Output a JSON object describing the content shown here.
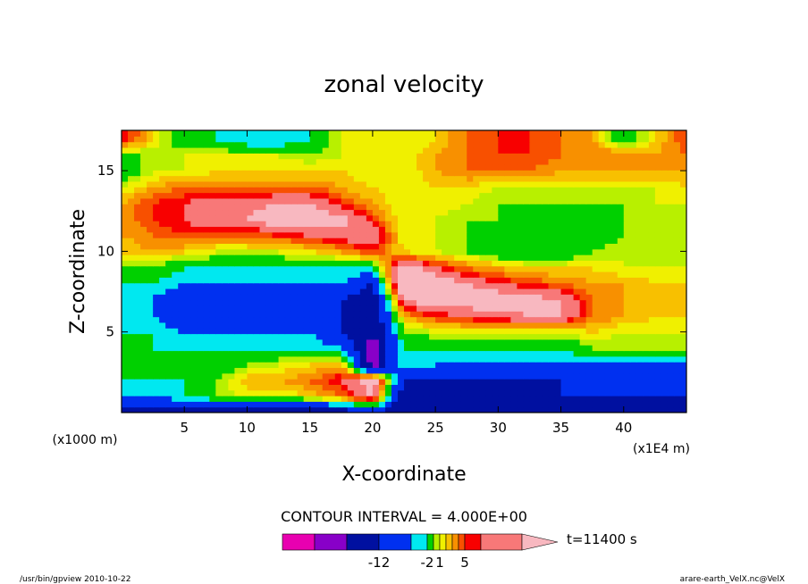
{
  "footer": {
    "program": "/usr/bin/gpview  2010-10-22",
    "source": "arare-earth_VelX.nc@VelX"
  },
  "chart_data": {
    "type": "heatmap",
    "title": "zonal velocity",
    "xlabel": "X-coordinate",
    "ylabel": "Z-coordinate",
    "x_unit": "(x1E4 m)",
    "y_unit": "(x1000 m)",
    "xlim": [
      0,
      45
    ],
    "ylim": [
      0,
      17.5
    ],
    "x_ticks": [
      5,
      10,
      15,
      20,
      25,
      30,
      35,
      40
    ],
    "y_ticks": [
      5,
      10,
      15
    ],
    "grid": false,
    "contour_interval_text": "CONTOUR INTERVAL = 4.000E+00",
    "time_label": "t=11400 s",
    "colorbar": {
      "tick_labels": [
        "-12",
        "-2",
        "1",
        "5"
      ],
      "colors": [
        "#e800b0",
        "#8800c8",
        "#0010a0",
        "#0030f0",
        "#00e8f0",
        "#00d000",
        "#b8f000",
        "#f0f000",
        "#f8c000",
        "#f89000",
        "#f85000",
        "#f80000",
        "#f87878",
        "#f8b8c0"
      ]
    },
    "field": {
      "value_grid_x": [
        0,
        2.5,
        5,
        7.5,
        10,
        12.5,
        15,
        17.5,
        20,
        22.5,
        25,
        27.5,
        30,
        32.5,
        35,
        37.5,
        40,
        42.5,
        45
      ],
      "value_grid_z": [
        0,
        1,
        2,
        3,
        4,
        5,
        6,
        7,
        8,
        9,
        10,
        11,
        12,
        13,
        14,
        15,
        16,
        17
      ],
      "description_rows_from_bottom": "see rows",
      "rows": [
        [
          -12,
          -12,
          -12,
          -12,
          -12,
          -12,
          -12,
          -12,
          -8,
          -12,
          -12,
          -12,
          -12,
          -12,
          -12,
          -12,
          -12,
          -12,
          -12
        ],
        [
          -4,
          -4,
          -2,
          0,
          1,
          1,
          2,
          4,
          8,
          -12,
          -12,
          -12,
          -12,
          -12,
          -8,
          -8,
          -8,
          -8,
          -8
        ],
        [
          -2,
          -2,
          -2,
          0,
          3,
          3,
          4,
          6,
          10,
          -8,
          -8,
          -8,
          -8,
          -8,
          -8,
          -8,
          -8,
          -8,
          -8
        ],
        [
          -2,
          -2,
          -2,
          -2,
          0,
          1,
          2,
          3,
          -14,
          -2,
          -4,
          -4,
          -4,
          -4,
          -4,
          -4,
          -4,
          -4,
          -4
        ],
        [
          -2,
          -2,
          -2,
          -2,
          -2,
          -2,
          -2,
          -4,
          -14,
          -2,
          -2,
          -2,
          -2,
          -2,
          -2,
          0,
          0,
          0,
          0
        ],
        [
          -2,
          -2,
          -4,
          -4,
          -4,
          -4,
          -4,
          -8,
          -12,
          0,
          1,
          1,
          1,
          1,
          1,
          2,
          1,
          1,
          1
        ],
        [
          -2,
          -4,
          -8,
          -8,
          -8,
          -8,
          -8,
          -8,
          -12,
          3,
          5,
          6,
          7,
          8,
          8,
          4,
          3,
          2,
          2
        ],
        [
          -2,
          -4,
          -8,
          -8,
          -8,
          -8,
          -8,
          -8,
          -12,
          8,
          10,
          10,
          10,
          9,
          8,
          4,
          3,
          2,
          2
        ],
        [
          -2,
          -2,
          -4,
          -4,
          -4,
          -4,
          -4,
          -4,
          -8,
          12,
          10,
          8,
          6,
          5,
          4,
          3,
          3,
          2,
          2
        ],
        [
          0,
          0,
          -2,
          -2,
          -2,
          -2,
          -2,
          -2,
          -2,
          10,
          6,
          4,
          3,
          2,
          2,
          2,
          1,
          1,
          1
        ],
        [
          2,
          3,
          2,
          1,
          1,
          1,
          2,
          3,
          5,
          2,
          1,
          0,
          -2,
          -2,
          -2,
          0,
          1,
          0,
          0
        ],
        [
          3,
          4,
          5,
          4,
          4,
          5,
          6,
          7,
          8,
          1,
          1,
          0,
          -2,
          -2,
          -2,
          -2,
          0,
          0,
          1
        ],
        [
          3,
          5,
          6,
          8,
          8,
          10,
          10,
          9,
          5,
          1,
          1,
          0,
          0,
          -2,
          -2,
          -2,
          0,
          0,
          1
        ],
        [
          3,
          5,
          6,
          7,
          7,
          8,
          8,
          5,
          3,
          1,
          2,
          1,
          0,
          0,
          0,
          0,
          0,
          1,
          1
        ],
        [
          1,
          3,
          4,
          4,
          4,
          4,
          4,
          3,
          2,
          1,
          2,
          2,
          1,
          1,
          1,
          1,
          1,
          1,
          2
        ],
        [
          -2,
          1,
          1,
          2,
          2,
          2,
          2,
          2,
          1,
          1,
          3,
          4,
          4,
          4,
          3,
          3,
          3,
          3,
          3
        ],
        [
          0,
          0,
          1,
          1,
          1,
          1,
          0,
          1,
          1,
          1,
          3,
          4,
          5,
          5,
          4,
          4,
          4,
          3,
          4
        ],
        [
          6,
          2,
          -2,
          -2,
          -4,
          -4,
          -2,
          1,
          1,
          1,
          2,
          4,
          5,
          5,
          4,
          3,
          -2,
          2,
          5
        ]
      ]
    }
  }
}
